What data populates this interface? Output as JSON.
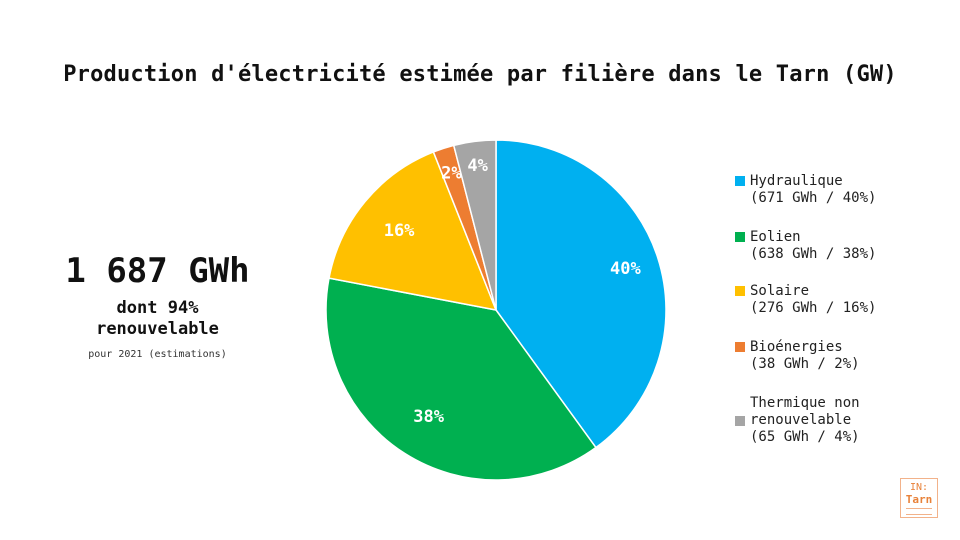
{
  "title": "Production d'électricité estimée par filière dans le Tarn (GW)",
  "kpi": {
    "value": "1 687 GWh",
    "subtitle_line1": "dont 94%",
    "subtitle_line2": "renouvelable",
    "note": "pour 2021 (estimations)"
  },
  "chart_data": {
    "type": "pie",
    "title": "Production d'électricité estimée par filière dans le Tarn (GW)",
    "legend_position": "right",
    "slices": [
      {
        "name": "Hydraulique",
        "value": 671,
        "percent": 40,
        "label": "40%",
        "color": "#00b0f0",
        "legend": "Hydraulique\n(671 GWh / 40%)"
      },
      {
        "name": "Eolien",
        "value": 638,
        "percent": 38,
        "label": "38%",
        "color": "#00b050",
        "legend": "Eolien\n(638 GWh / 38%)"
      },
      {
        "name": "Solaire",
        "value": 276,
        "percent": 16,
        "label": "16%",
        "color": "#ffc000",
        "legend": "Solaire\n(276 GWh / 16%)"
      },
      {
        "name": "Bioénergies",
        "value": 38,
        "percent": 2,
        "label": "2%",
        "color": "#ed7d31",
        "legend": "Bioénergies\n(38 GWh / 2%)"
      },
      {
        "name": "Thermique non renouvelable",
        "value": 65,
        "percent": 4,
        "label": "4%",
        "color": "#a5a5a5",
        "legend": "Thermique non\nrenouvelable\n(65 GWh / 4%)"
      }
    ]
  },
  "logo": {
    "top": "IN:",
    "bottom": "Tarn"
  }
}
